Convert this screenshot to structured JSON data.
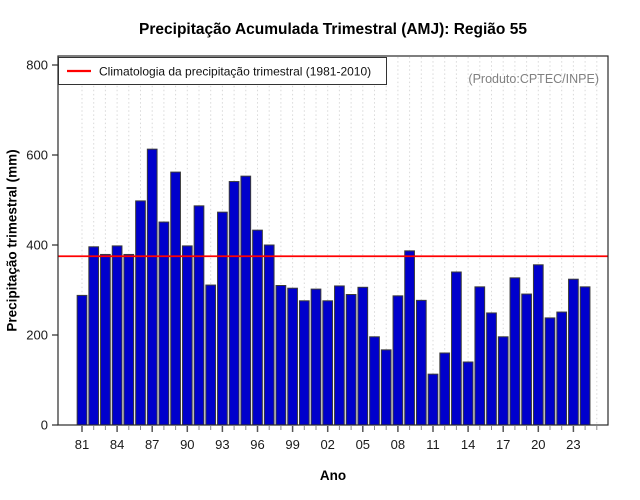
{
  "chart_data": {
    "type": "bar",
    "title": "Precipitação Acumulada Trimestral (AMJ): Região 55",
    "xlabel": "Ano",
    "ylabel": "Precipitação trimestral (mm)",
    "annotation": "(Produto:CPTEC/INPE)",
    "legend_label": "Climatologia da precipitação trimestral (1981-2010)",
    "legend_position": "top-left",
    "categories": [
      "81",
      "82",
      "83",
      "84",
      "85",
      "86",
      "87",
      "88",
      "89",
      "90",
      "91",
      "92",
      "93",
      "94",
      "95",
      "96",
      "97",
      "98",
      "99",
      "00",
      "01",
      "02",
      "03",
      "04",
      "05",
      "06",
      "07",
      "08",
      "09",
      "10",
      "11",
      "12",
      "13",
      "14",
      "15",
      "16",
      "17",
      "18",
      "19",
      "20",
      "21",
      "22",
      "23",
      "24"
    ],
    "values": [
      288,
      396,
      379,
      398,
      379,
      498,
      613,
      451,
      562,
      398,
      487,
      311,
      473,
      541,
      553,
      433,
      400,
      310,
      304,
      276,
      302,
      276,
      309,
      290,
      306,
      196,
      167,
      287,
      387,
      277,
      113,
      160,
      340,
      140,
      307,
      249,
      196,
      327,
      291,
      356,
      238,
      251,
      324,
      307
    ],
    "x_tick_labels": [
      "81",
      "84",
      "87",
      "90",
      "93",
      "96",
      "99",
      "02",
      "05",
      "08",
      "11",
      "14",
      "17",
      "20",
      "23"
    ],
    "y_ticks": [
      0,
      200,
      400,
      600,
      800
    ],
    "ylim": [
      0,
      820
    ],
    "climatology_value": 375,
    "climatology_color": "#FF0000",
    "bar_color": "#0000CC",
    "bar_border_color": "#3a3a3a",
    "grid": {
      "vertical_dashed": true,
      "color": "#d9d9d9"
    }
  }
}
